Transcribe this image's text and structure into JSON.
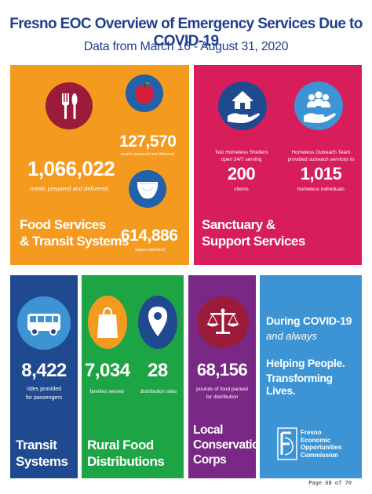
{
  "header": {
    "title": "Fresno EOC Overview of Emergency Services Due to COVID-19",
    "subtitle": "Data from March 16 - August 31, 2020"
  },
  "food": {
    "meals_value": "1,066,022",
    "meals_label": "meals prepared and delivered",
    "snacks_value": "127,570",
    "snacks_label": "snacks prepared and delivered",
    "diapers_value": "614,886",
    "diapers_label": "diapers delivered",
    "heading_line1": "Food Services",
    "heading_line2": "& Transit Systems"
  },
  "sanctuary": {
    "shelters_label_line1": "Two Homeless Shelters",
    "shelters_label_line2": "open 24/7 serving",
    "shelters_value": "200",
    "shelters_unit": "clients",
    "outreach_label_line1": "Homeless Outreach Team",
    "outreach_label_line2": "provided outreach services to",
    "outreach_value": "1,015",
    "outreach_unit": "homeless individuals",
    "heading_line1": "Sanctuary &",
    "heading_line2": "Support Services"
  },
  "transit": {
    "value": "8,422",
    "label_line1": "rides provided",
    "label_line2": "for passengers",
    "heading_line1": "Transit",
    "heading_line2": "Systems"
  },
  "rural": {
    "families_value": "7,034",
    "families_label": "families served",
    "sites_value": "28",
    "sites_label": "distribution sites",
    "heading_line1": "Rural Food",
    "heading_line2": "Distributions"
  },
  "corps": {
    "value": "68,156",
    "label_line1": "pounds of food packed",
    "label_line2": "for distribution",
    "heading_line1": "Local",
    "heading_line2": "Conservation",
    "heading_line3": "Corps"
  },
  "eoc": {
    "line1": "During COVID-19",
    "line2": "and always",
    "line3": "Helping People.",
    "line4": "Transforming Lives.",
    "logo_line1": "Fresno",
    "logo_line2": "Economic",
    "logo_line3": "Opportunities",
    "logo_line4": "Commission"
  },
  "footer": {
    "page": "Page 68 of 70"
  },
  "colors": {
    "title": "#1f3f8f",
    "food": "#f49a1f",
    "sanctuary": "#d81d5b",
    "transit": "#1f4a8f",
    "rural": "#1da545",
    "corps": "#7a2885",
    "eoc": "#3c94d4",
    "icon_maroon": "#9b1b3a",
    "icon_blue": "#2361a8"
  },
  "icons": [
    "utensils-icon",
    "apple-icon",
    "diaper-icon",
    "house-hand-icon",
    "people-hand-icon",
    "bus-icon",
    "bag-icon",
    "map-pin-icon",
    "scales-icon",
    "eoc-logo"
  ]
}
